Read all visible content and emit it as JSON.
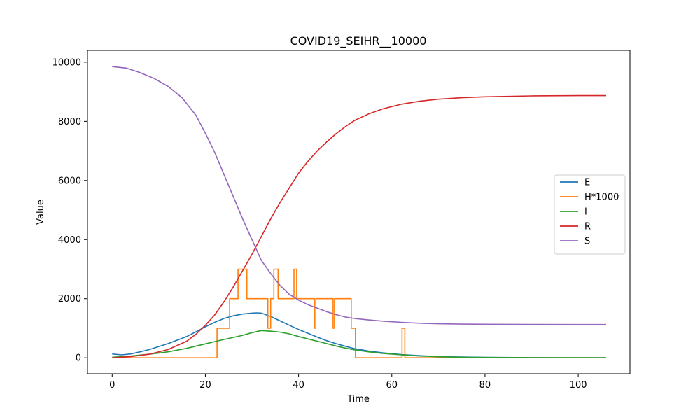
{
  "chart_data": {
    "type": "line",
    "title": "COVID19_SEIHR__10000",
    "xlabel": "Time",
    "ylabel": "Value",
    "xlim": [
      -5.3,
      111.1
    ],
    "ylim": [
      -540,
      10400
    ],
    "xticks": [
      0,
      20,
      40,
      60,
      80,
      100
    ],
    "xtick_labels": [
      "0",
      "20",
      "40",
      "60",
      "80",
      "100"
    ],
    "yticks": [
      0,
      2000,
      4000,
      6000,
      8000,
      10000
    ],
    "ytick_labels": [
      "0",
      "2000",
      "4000",
      "6000",
      "8000",
      "10000"
    ],
    "grid": false,
    "legend_position": "center-right",
    "series": [
      {
        "name": "E",
        "color": "#1f77b4",
        "step": false,
        "points": [
          [
            0,
            130
          ],
          [
            2,
            100
          ],
          [
            4,
            130
          ],
          [
            6,
            200
          ],
          [
            8,
            280
          ],
          [
            10,
            380
          ],
          [
            12,
            480
          ],
          [
            14,
            600
          ],
          [
            16,
            720
          ],
          [
            18,
            880
          ],
          [
            20,
            1050
          ],
          [
            22,
            1200
          ],
          [
            24,
            1330
          ],
          [
            26,
            1420
          ],
          [
            28,
            1480
          ],
          [
            30,
            1510
          ],
          [
            31,
            1520
          ],
          [
            32,
            1510
          ],
          [
            34,
            1400
          ],
          [
            36,
            1250
          ],
          [
            38,
            1100
          ],
          [
            40,
            960
          ],
          [
            42,
            830
          ],
          [
            44,
            700
          ],
          [
            46,
            580
          ],
          [
            48,
            480
          ],
          [
            50,
            390
          ],
          [
            52,
            310
          ],
          [
            55,
            230
          ],
          [
            58,
            170
          ],
          [
            62,
            110
          ],
          [
            66,
            70
          ],
          [
            70,
            40
          ],
          [
            75,
            25
          ],
          [
            80,
            15
          ],
          [
            90,
            8
          ],
          [
            100,
            3
          ],
          [
            106,
            2
          ]
        ]
      },
      {
        "name": "H*1000",
        "color": "#ff7f0e",
        "step": true,
        "points": [
          [
            0,
            0
          ],
          [
            22.5,
            0
          ],
          [
            22.5,
            1000
          ],
          [
            25.2,
            1000
          ],
          [
            25.2,
            2000
          ],
          [
            27,
            2000
          ],
          [
            27,
            3000
          ],
          [
            28.9,
            3000
          ],
          [
            28.9,
            2000
          ],
          [
            33.4,
            2000
          ],
          [
            33.4,
            1000
          ],
          [
            34,
            1000
          ],
          [
            34,
            2000
          ],
          [
            34.7,
            2000
          ],
          [
            34.7,
            3000
          ],
          [
            35.6,
            3000
          ],
          [
            35.6,
            2000
          ],
          [
            39,
            2000
          ],
          [
            39,
            3000
          ],
          [
            39.6,
            3000
          ],
          [
            39.6,
            2000
          ],
          [
            43.4,
            2000
          ],
          [
            43.4,
            1000
          ],
          [
            43.7,
            1000
          ],
          [
            43.7,
            2000
          ],
          [
            47.4,
            2000
          ],
          [
            47.4,
            1000
          ],
          [
            47.7,
            1000
          ],
          [
            47.7,
            2000
          ],
          [
            51.3,
            2000
          ],
          [
            51.3,
            1000
          ],
          [
            52.2,
            1000
          ],
          [
            52.2,
            0
          ],
          [
            62.2,
            0
          ],
          [
            62.2,
            1000
          ],
          [
            62.8,
            1000
          ],
          [
            62.8,
            0
          ],
          [
            106,
            0
          ]
        ]
      },
      {
        "name": "I",
        "color": "#2ca02c",
        "step": false,
        "points": [
          [
            0,
            20
          ],
          [
            4,
            60
          ],
          [
            8,
            120
          ],
          [
            12,
            200
          ],
          [
            16,
            320
          ],
          [
            20,
            470
          ],
          [
            24,
            620
          ],
          [
            28,
            760
          ],
          [
            30,
            850
          ],
          [
            32,
            920
          ],
          [
            34,
            900
          ],
          [
            36,
            870
          ],
          [
            38,
            810
          ],
          [
            40,
            720
          ],
          [
            42,
            640
          ],
          [
            44,
            560
          ],
          [
            46,
            480
          ],
          [
            48,
            400
          ],
          [
            50,
            330
          ],
          [
            52,
            270
          ],
          [
            55,
            200
          ],
          [
            58,
            150
          ],
          [
            62,
            100
          ],
          [
            66,
            60
          ],
          [
            70,
            35
          ],
          [
            75,
            20
          ],
          [
            80,
            12
          ],
          [
            90,
            5
          ],
          [
            100,
            2
          ],
          [
            106,
            1
          ]
        ]
      },
      {
        "name": "R",
        "color": "#d62728",
        "step": false,
        "points": [
          [
            0,
            0
          ],
          [
            4,
            40
          ],
          [
            8,
            120
          ],
          [
            12,
            280
          ],
          [
            16,
            560
          ],
          [
            18,
            800
          ],
          [
            20,
            1100
          ],
          [
            22,
            1450
          ],
          [
            24,
            1900
          ],
          [
            26,
            2400
          ],
          [
            28,
            2950
          ],
          [
            30,
            3500
          ],
          [
            32,
            4100
          ],
          [
            34,
            4700
          ],
          [
            36,
            5250
          ],
          [
            38,
            5750
          ],
          [
            40,
            6250
          ],
          [
            42,
            6650
          ],
          [
            44,
            7000
          ],
          [
            46,
            7300
          ],
          [
            48,
            7580
          ],
          [
            50,
            7820
          ],
          [
            52,
            8030
          ],
          [
            55,
            8250
          ],
          [
            58,
            8420
          ],
          [
            62,
            8580
          ],
          [
            66,
            8680
          ],
          [
            70,
            8750
          ],
          [
            75,
            8800
          ],
          [
            80,
            8830
          ],
          [
            90,
            8860
          ],
          [
            100,
            8870
          ],
          [
            106,
            8870
          ]
        ]
      },
      {
        "name": "S",
        "color": "#9467bd",
        "step": false,
        "points": [
          [
            0,
            9850
          ],
          [
            3,
            9800
          ],
          [
            6,
            9650
          ],
          [
            9,
            9450
          ],
          [
            12,
            9180
          ],
          [
            15,
            8800
          ],
          [
            18,
            8200
          ],
          [
            20,
            7600
          ],
          [
            22,
            6950
          ],
          [
            24,
            6200
          ],
          [
            26,
            5450
          ],
          [
            28,
            4700
          ],
          [
            30,
            4000
          ],
          [
            32,
            3300
          ],
          [
            34,
            2850
          ],
          [
            36,
            2450
          ],
          [
            38,
            2150
          ],
          [
            40,
            1950
          ],
          [
            42,
            1800
          ],
          [
            44,
            1680
          ],
          [
            46,
            1560
          ],
          [
            48,
            1460
          ],
          [
            50,
            1380
          ],
          [
            52,
            1330
          ],
          [
            55,
            1280
          ],
          [
            58,
            1240
          ],
          [
            62,
            1200
          ],
          [
            66,
            1170
          ],
          [
            70,
            1150
          ],
          [
            75,
            1140
          ],
          [
            80,
            1135
          ],
          [
            90,
            1130
          ],
          [
            100,
            1125
          ],
          [
            106,
            1125
          ]
        ]
      }
    ]
  }
}
